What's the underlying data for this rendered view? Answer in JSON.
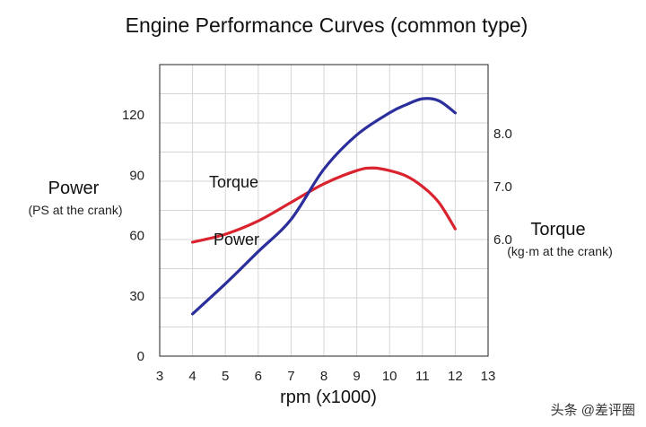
{
  "chart_data": {
    "type": "line",
    "title": "Engine Performance Curves (common type)",
    "xlabel": "rpm (x1000)",
    "ylabel": "Power",
    "ylabel_sub": "(PS at the crank)",
    "y2label": "Torque",
    "y2label_sub": "(kg·m at the crank)",
    "xlim": [
      3,
      13
    ],
    "ylim": [
      0,
      145
    ],
    "y2lim": [
      3.8,
      9.3
    ],
    "xticks": [
      3,
      4,
      5,
      6,
      7,
      8,
      9,
      10,
      11,
      12,
      13
    ],
    "yticks": [
      0,
      30,
      60,
      90,
      120
    ],
    "y2ticks": [
      "6.0",
      "7.0",
      "8.0"
    ],
    "grid": true,
    "legend": "inline labels",
    "series": [
      {
        "name": "Torque",
        "axis": "right",
        "color": "#d9232e",
        "x": [
          4,
          5,
          6,
          7,
          8,
          9,
          9.5,
          10,
          10.5,
          11,
          11.5,
          12
        ],
        "y": [
          5.95,
          6.1,
          6.35,
          6.7,
          7.05,
          7.3,
          7.35,
          7.3,
          7.2,
          7.0,
          6.7,
          6.2
        ]
      },
      {
        "name": "Power",
        "axis": "left",
        "color": "#2b2f9c",
        "x": [
          4,
          5,
          6,
          7,
          8,
          9,
          10,
          10.5,
          11,
          11.5,
          12
        ],
        "y": [
          21,
          36,
          52,
          68,
          93,
          110,
          121,
          125,
          128,
          127,
          121
        ]
      }
    ]
  },
  "labels": {
    "torque_label": "Torque",
    "power_label": "Power"
  },
  "watermark": "头条 @差评圈"
}
